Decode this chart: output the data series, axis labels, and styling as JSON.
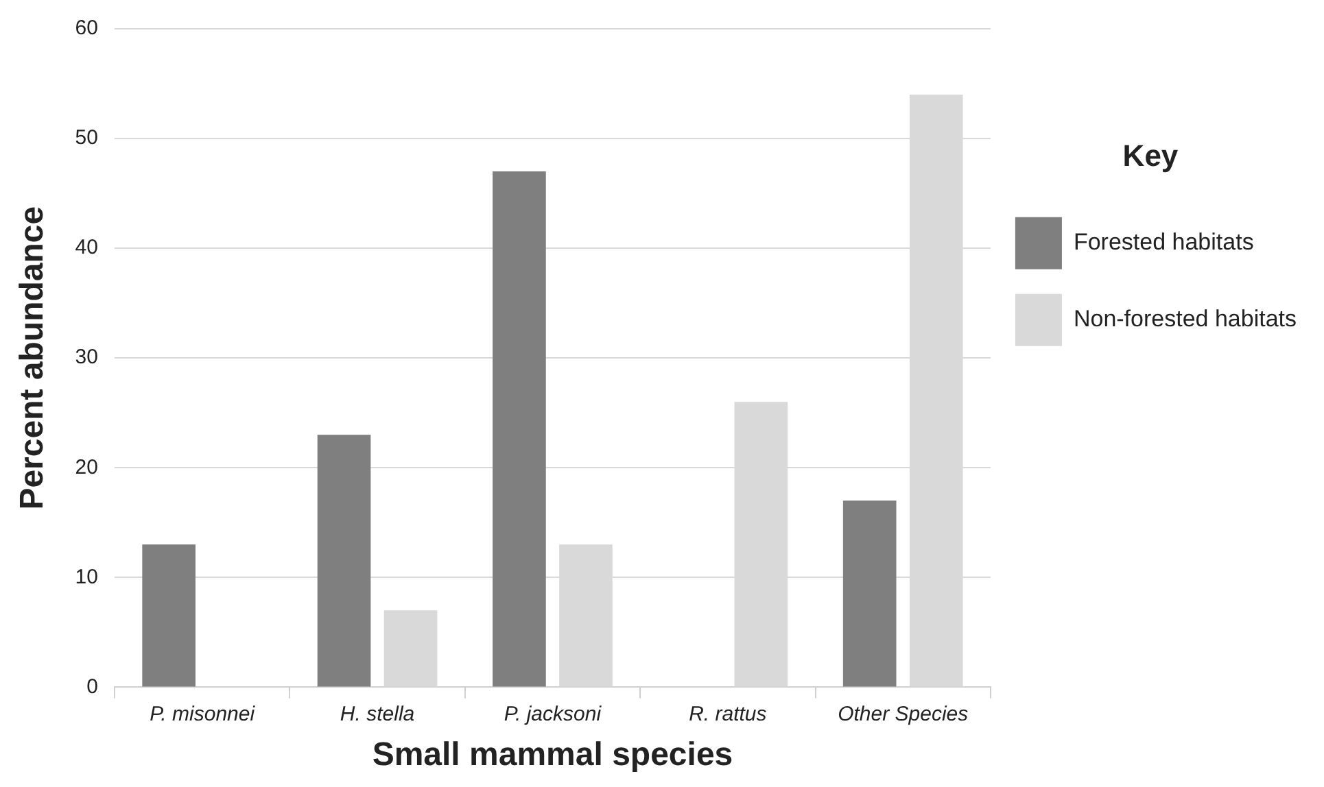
{
  "chart_data": {
    "type": "bar",
    "xlabel": "Small mammal species",
    "ylabel": "Percent abundance",
    "legend_title": "Key",
    "categories": [
      "P. misonnei",
      "H. stella",
      "P. jacksoni",
      "R. rattus",
      "Other Species"
    ],
    "series": [
      {
        "name": "Forested habitats",
        "color": "#7f7f7f",
        "values": [
          13,
          23,
          47,
          0,
          17
        ]
      },
      {
        "name": "Non-forested habitats",
        "color": "#d9d9d9",
        "values": [
          0,
          7,
          13,
          26,
          54
        ]
      }
    ],
    "ylim": [
      0,
      60
    ],
    "yticks": [
      0,
      10,
      20,
      30,
      40,
      50,
      60
    ],
    "grid": "y",
    "legend": "right"
  }
}
